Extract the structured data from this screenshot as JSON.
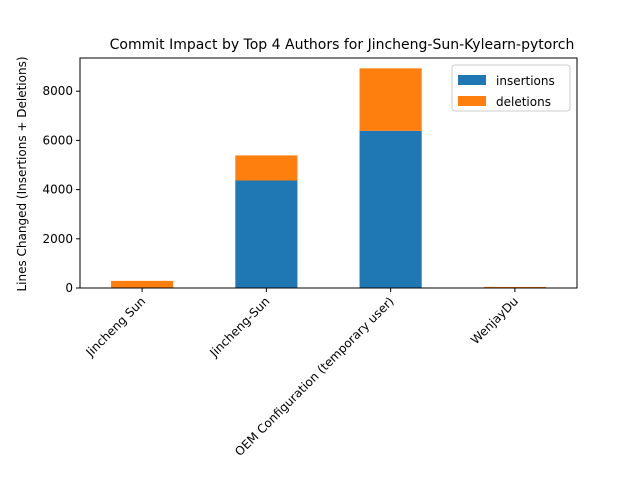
{
  "chart_data": {
    "type": "bar",
    "stacked": true,
    "title": "Commit Impact by Top 4 Authors for Jincheng-Sun-Kylearn-pytorch",
    "xlabel": "",
    "ylabel": "Lines Changed (Insertions + Deletions)",
    "categories": [
      "Jincheng Sun",
      "Jincheng-Sun",
      "OEM Configuration (temporary user)",
      "WenjayDu"
    ],
    "series": [
      {
        "name": "insertions",
        "color": "#1f77b4",
        "values": [
          10,
          4370,
          6390,
          15
        ]
      },
      {
        "name": "deletions",
        "color": "#ff7f0e",
        "values": [
          280,
          1020,
          2540,
          30
        ]
      }
    ],
    "ylim": [
      0,
      9350
    ],
    "yticks": [
      0,
      2000,
      4000,
      6000,
      8000
    ],
    "grid": false,
    "legend_position": "top-right"
  }
}
